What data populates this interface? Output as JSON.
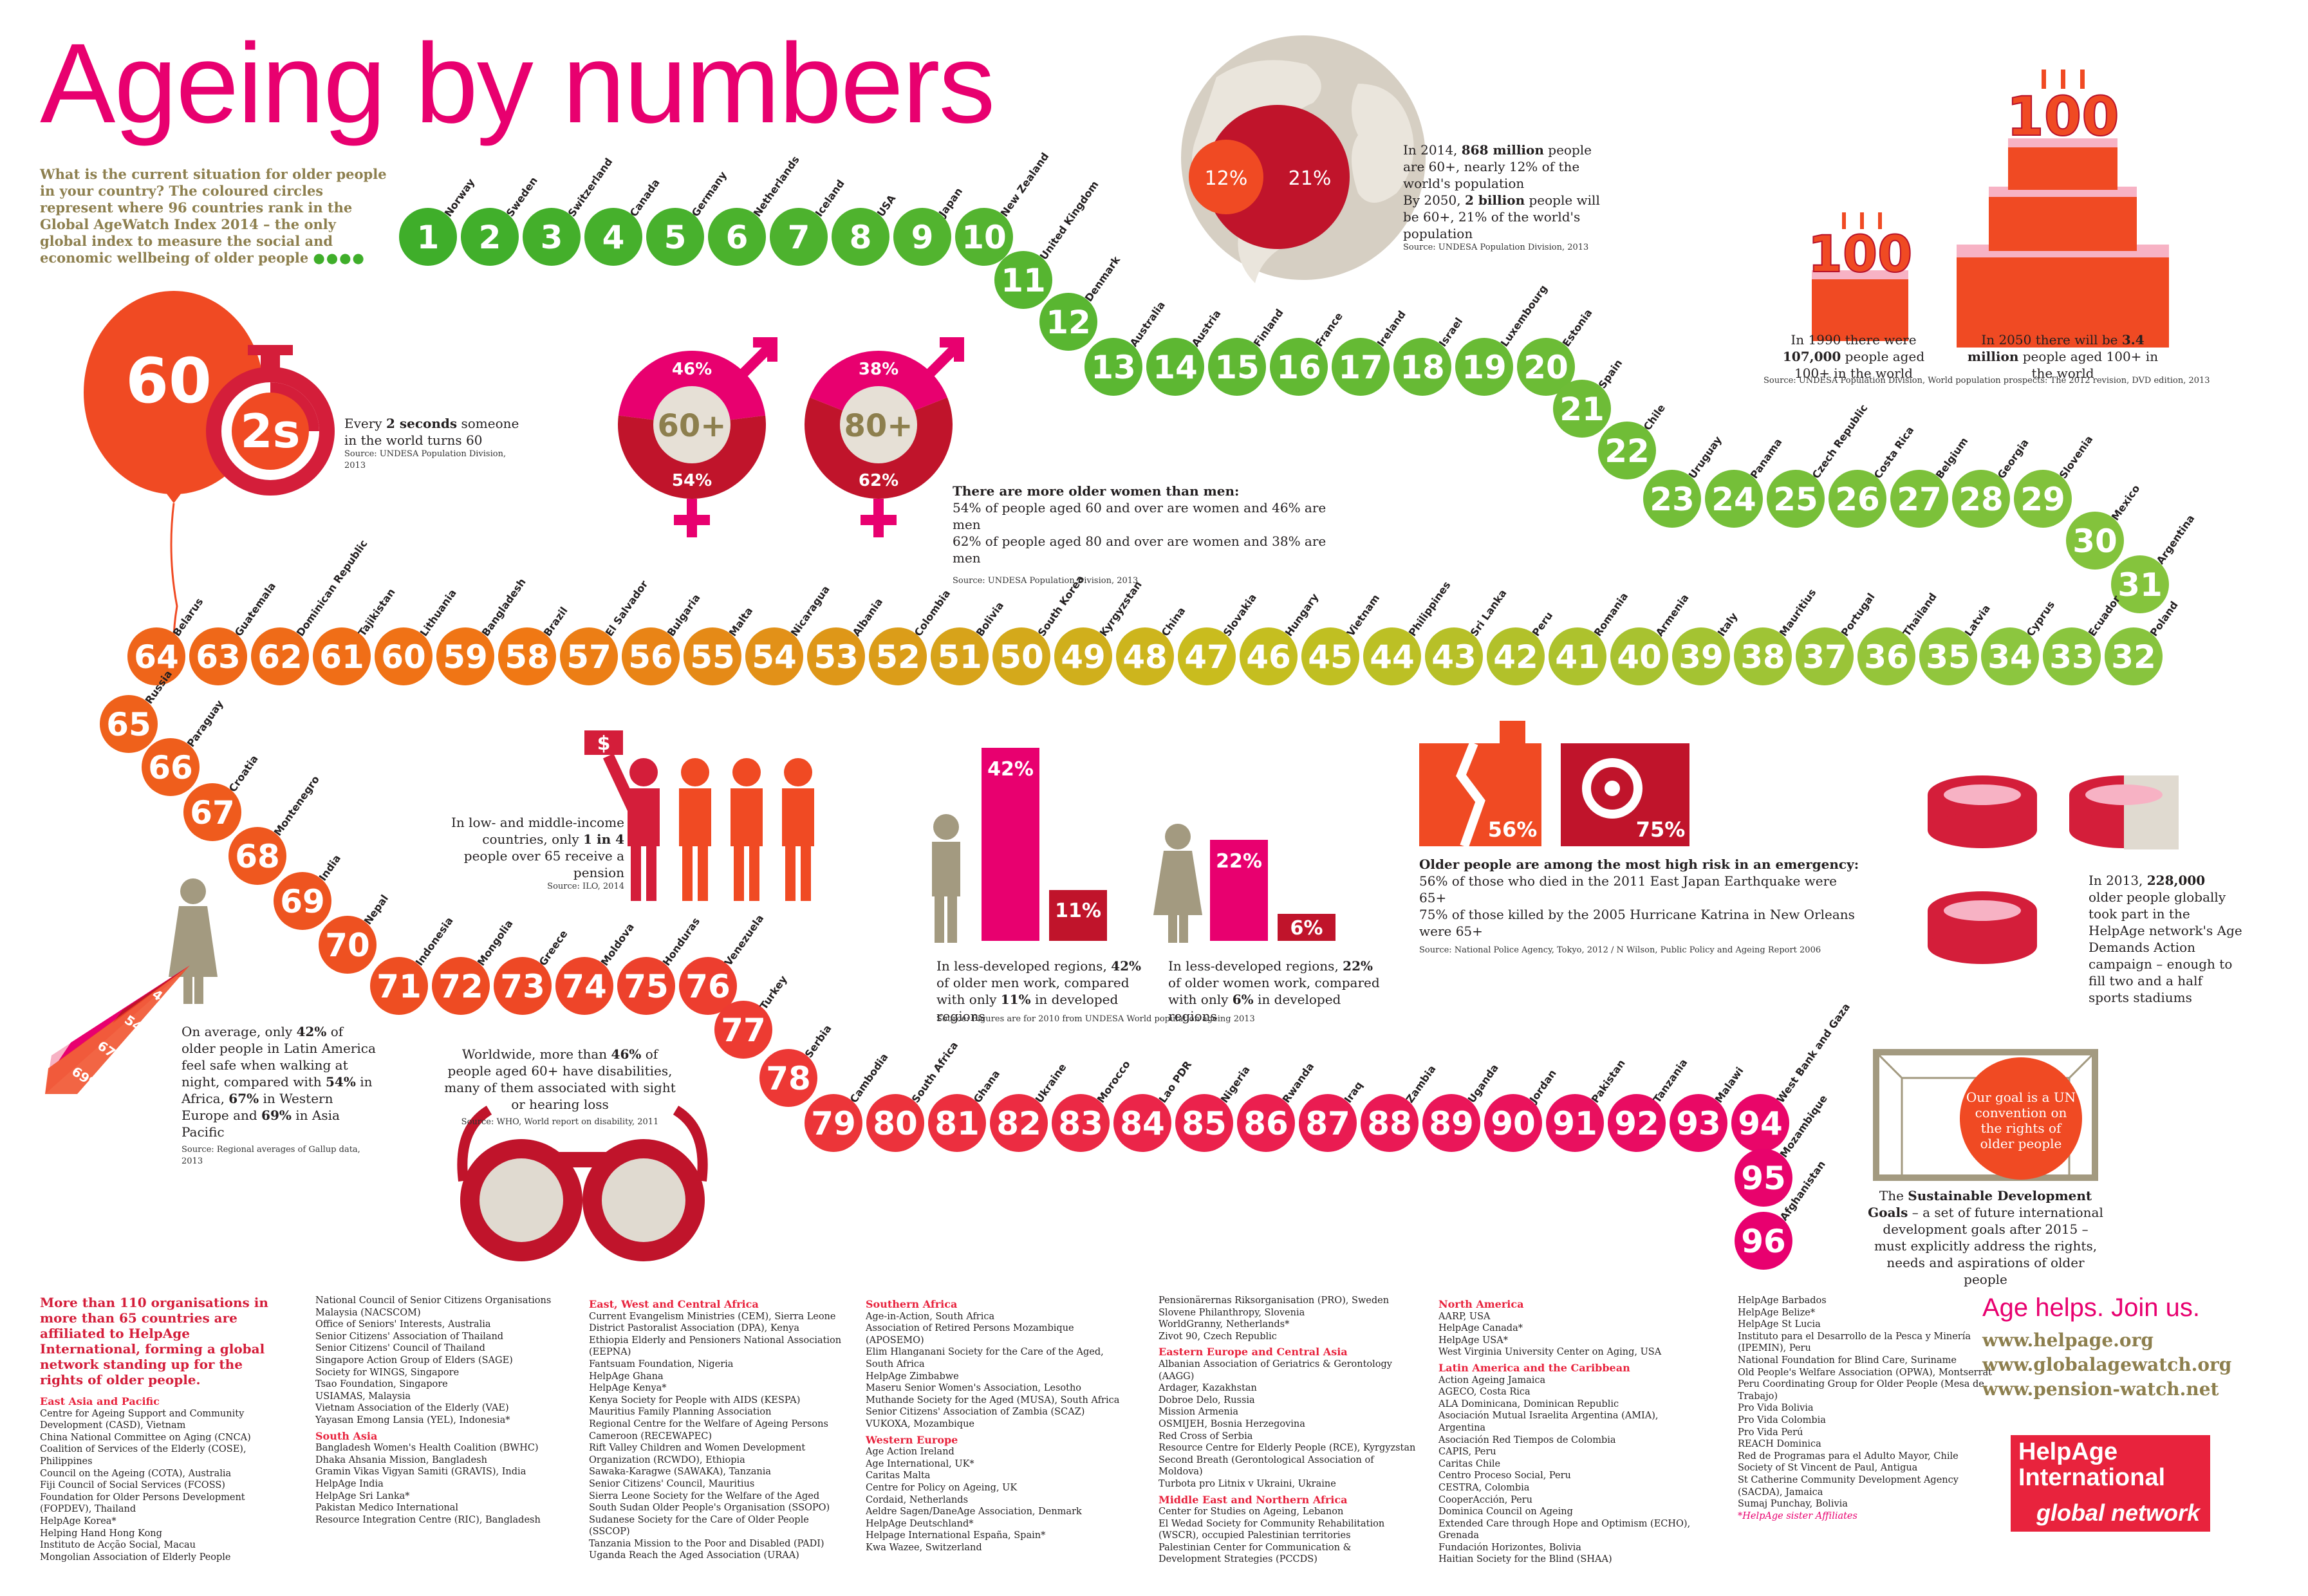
{
  "title": "Ageing by numbers",
  "intro": "What is the current situation for older people in your country? The coloured circles represent where 96 countries rank in the Global AgeWatch Index 2014 – the only global index to measure the social and economic wellbeing of older people",
  "intro_dots": "●●●●",
  "countries": [
    "Norway",
    "Sweden",
    "Switzerland",
    "Canada",
    "Germany",
    "Netherlands",
    "Iceland",
    "USA",
    "Japan",
    "New Zealand",
    "United Kingdom",
    "Denmark",
    "Australia",
    "Austria",
    "Finland",
    "France",
    "Ireland",
    "Israel",
    "Luxembourg",
    "Estonia",
    "Spain",
    "Chile",
    "Uruguay",
    "Panama",
    "Czech Republic",
    "Costa Rica",
    "Belgium",
    "Georgia",
    "Slovenia",
    "Mexico",
    "Argentina",
    "Poland",
    "Ecuador",
    "Cyprus",
    "Latvia",
    "Thailand",
    "Portugal",
    "Mauritius",
    "Italy",
    "Armenia",
    "Romania",
    "Peru",
    "Sri Lanka",
    "Philippines",
    "Vietnam",
    "Hungary",
    "Slovakia",
    "China",
    "Kyrgyzstan",
    "South Korea",
    "Bolivia",
    "Colombia",
    "Albania",
    "Nicaragua",
    "Malta",
    "Bulgaria",
    "El Salvador",
    "Brazil",
    "Bangladesh",
    "Lithuania",
    "Tajikistan",
    "Dominican Republic",
    "Guatemala",
    "Belarus",
    "Russia",
    "Paraguay",
    "Croatia",
    "Montenegro",
    "India",
    "Nepal",
    "Indonesia",
    "Mongolia",
    "Greece",
    "Moldova",
    "Honduras",
    "Venezuela",
    "Turkey",
    "Serbia",
    "Cambodia",
    "South Africa",
    "Ghana",
    "Ukraine",
    "Morocco",
    "Lao PDR",
    "Nigeria",
    "Rwanda",
    "Iraq",
    "Zambia",
    "Uganda",
    "Jordan",
    "Pakistan",
    "Tanzania",
    "Malawi",
    "West Bank and Gaza",
    "Mozambique",
    "Afghanistan"
  ],
  "colors": {
    "magenta": "#e8006f",
    "red": "#d41e3a",
    "orange": "#ee4a23",
    "green": "#3fae2a",
    "olive": "#8d7f4e",
    "darkred": "#b8112a",
    "pink": "#f06ca2",
    "lightgreen": "#8dc63f"
  },
  "population": {
    "pct_2014": "12%",
    "pct_2050": "21%",
    "text_2014_a": "In 2014, ",
    "text_2014_b": "868 million",
    "text_2014_c": " people are 60+, nearly 12% of the world's population",
    "text_2050_a": "By 2050, ",
    "text_2050_b": "2 billion",
    "text_2050_c": " people will be 60+, 21% of the world's population",
    "source": "Source: UNDESA Population Division, 2013"
  },
  "centenarians": {
    "small": "100",
    "big": "100",
    "text_1990_a": "In 1990 there were ",
    "text_1990_b": "107,000",
    "text_1990_c": " people aged 100+ in the world",
    "text_2050_a": "In 2050 there will be ",
    "text_2050_b": "3.4 million",
    "text_2050_c": " people aged 100+ in the world",
    "source": "Source: UNDESA Population Division, World population prospects: The 2012 revision, DVD edition, 2013"
  },
  "sixty": {
    "balloon": "60",
    "timer": "2s",
    "text_a": "Every ",
    "text_b": "2 seconds",
    "text_c": " someone in the world turns 60",
    "source": "Source: UNDESA Population Division, 2013"
  },
  "gender": {
    "g60": {
      "label": "60+",
      "men": "46%",
      "women": "54%",
      "men_pct": 46
    },
    "g80": {
      "label": "80+",
      "men": "38%",
      "women": "62%",
      "men_pct": 38
    },
    "title": "There are more older women than men:",
    "line1": "54% of people aged 60 and over are women and 46% are men",
    "line2": "62% of people aged 80 and over are women and 38% are men",
    "source": "Source: UNDESA Population Division, 2013"
  },
  "pension": {
    "sign": "$",
    "text_a": "In low- and middle-income countries, only ",
    "text_b": "1 in 4",
    "text_c": " people over 65 receive a pension",
    "source": "Source: ILO, 2014"
  },
  "work": {
    "men_less": "42%",
    "men_dev": "11%",
    "women_less": "22%",
    "women_dev": "6%",
    "men_text_a": "In less-developed regions, ",
    "men_text_b": "42%",
    "men_text_c": " of older men work, compared with only ",
    "men_text_d": "11%",
    "men_text_e": " in developed regions",
    "women_text_a": "In less-developed regions, ",
    "women_text_b": "22%",
    "women_text_c": " of older women work, compared with only ",
    "women_text_d": "6%",
    "women_text_e": " in developed regions",
    "source": "Source: Figures are for 2010 from UNDESA World population ageing 2013"
  },
  "emergency": {
    "quake": "56%",
    "katrina": "75%",
    "title": "Older people are among the most high risk in an emergency:",
    "line1": "56% of those who died in the 2011 East Japan Earthquake were 65+",
    "line2": "75% of those killed by the 2005 Hurricane Katrina in New Orleans were 65+",
    "source": "Source: National Police Agency, Tokyo, 2012 / N Wilson, Public Policy and Ageing Report 2006"
  },
  "stadium": {
    "text_a": "In 2013, ",
    "text_b": "228,000",
    "text_c": " older people globally took part in the HelpAge network's Age Demands Action campaign – enough to fill two and a half sports stadiums"
  },
  "safety": {
    "v1": "42%",
    "v2": "54%",
    "v3": "67%",
    "v4": "69%",
    "text_a": "On average, only ",
    "text_b": "42%",
    "text_c": " of older people in Latin America feel safe when walking at night, compared with ",
    "text_d": "54%",
    "text_e": " in Africa, ",
    "text_f": "67%",
    "text_g": " in Western Europe and ",
    "text_h": "69%",
    "text_i": " in Asia Pacific",
    "source": "Source: Regional averages of Gallup data, 2013"
  },
  "disability": {
    "text_a": "Worldwide, more than ",
    "text_b": "46%",
    "text_c": " of people aged 60+ have disabilities, many of them associated with sight or hearing loss",
    "source": "Source: WHO, World report on disability, 2011"
  },
  "sdg": {
    "ball": "Our goal is a UN convention on the rights of older people",
    "text_a": "The ",
    "text_b": "Sustainable Development Goals",
    "text_c": " – a set of future international development goals after 2015 – must explicitly address the rights, needs and aspirations of older people"
  },
  "orgs_lead": "More than 110 organisations in more than 65 countries are affiliated to HelpAge International, forming a global network standing up for the rights of older people.",
  "join": {
    "slogan": "Age helps. Join us.",
    "web1": "www.helpage.org",
    "web2": "www.globalagewatch.org",
    "web3": "www.pension-watch.net"
  },
  "logo": {
    "line1": "HelpAge",
    "line2": "International",
    "line3": "global network"
  },
  "orgs": [
    [
      {
        "h": "East Asia and Pacific"
      },
      "Centre for Ageing Support and Community Development (CASD), Vietnam",
      "China National Committee on Aging (CNCA)",
      "Coalition of Services of the Elderly (COSE), Philippines",
      "Council on the Ageing (COTA), Australia",
      "Fiji Council of Social Services (FCOSS)",
      "Foundation for Older Persons Development (FOPDEV), Thailand",
      "HelpAge Korea*",
      "Helping Hand Hong Kong",
      "Instituto de Acção Social, Macau",
      "Mongolian Association of Elderly People"
    ],
    [
      "National Council of Senior Citizens Organisations Malaysia (NACSCOM)",
      "Office of Seniors' Interests, Australia",
      "Senior Citizens' Association of Thailand",
      "Senior Citizens' Council of Thailand",
      "Singapore Action Group of Elders (SAGE)",
      "Society for WINGS, Singapore",
      "Tsao Foundation, Singapore",
      "USIAMAS, Malaysia",
      "Vietnam Association of the Elderly (VAE)",
      "Yayasan Emong Lansia (YEL), Indonesia*",
      {
        "h": "South Asia"
      },
      "Bangladesh Women's Health Coalition (BWHC)",
      "Dhaka Ahsania Mission, Bangladesh",
      "Gramin Vikas Vigyan Samiti (GRAVIS), India",
      "HelpAge India",
      "HelpAge Sri Lanka*",
      "Pakistan Medico International",
      "Resource Integration Centre (RIC), Bangladesh"
    ],
    [
      {
        "h": "East, West and Central Africa"
      },
      "Current Evangelism Ministries (CEM), Sierra Leone",
      "District Pastoralist Association (DPA), Kenya",
      "Ethiopia Elderly and Pensioners National Association (EEPNA)",
      "Fantsuam Foundation, Nigeria",
      "HelpAge Ghana",
      "HelpAge Kenya*",
      "Kenya Society for People with AIDS (KESPA)",
      "Mauritius Family Planning Association",
      "Regional Centre for the Welfare of Ageing Persons Cameroon (RECEWAPEC)",
      "Rift Valley Children and Women Development Organization (RCWDO), Ethiopia",
      "Sawaka-Karagwe (SAWAKA), Tanzania",
      "Senior Citizens' Council, Mauritius",
      "Sierra Leone Society for the Welfare of the Aged",
      "South Sudan Older People's Organisation (SSOPO)",
      "Sudanese Society for the Care of Older People (SSCOP)",
      "Tanzania Mission to the Poor and Disabled (PADI)",
      "Uganda Reach the Aged Association (URAA)"
    ],
    [
      {
        "h": "Southern Africa"
      },
      "Age-in-Action, South Africa",
      "Association of Retired Persons Mozambique (APOSEMO)",
      "Elim Hlanganani Society for the Care of the Aged, South Africa",
      "HelpAge Zimbabwe",
      "Maseru Senior Women's Association, Lesotho",
      "Muthande Society for the Aged (MUSA), South Africa",
      "Senior Citizens' Association of Zambia (SCAZ)",
      "VUKOXA, Mozambique",
      {
        "h": "Western Europe"
      },
      "Age Action Ireland",
      "Age International, UK*",
      "Caritas Malta",
      "Centre for Policy on Ageing, UK",
      "Cordaid, Netherlands",
      "Aeldre Sagen/DaneAge Association, Denmark",
      "HelpAge Deutschland*",
      "Helpage International España, Spain*",
      "Kwa Wazee, Switzerland"
    ],
    [
      "Pensionärernas Riksorganisation (PRO), Sweden",
      "Slovene Philanthropy, Slovenia",
      "WorldGranny, Netherlands*",
      "Zivot 90, Czech Republic",
      {
        "h": "Eastern Europe and Central Asia"
      },
      "Albanian Association of Geriatrics & Gerontology (AAGG)",
      "Ardager, Kazakhstan",
      "Dobroe Delo, Russia",
      "Mission Armenia",
      "OSMIJEH, Bosnia Herzegovina",
      "Red Cross of Serbia",
      "Resource Centre for Elderly People (RCE), Kyrgyzstan",
      "Second Breath (Gerontological Association of Moldova)",
      "Turbota pro Litnix v Ukraini, Ukraine",
      {
        "h": "Middle East and Northern Africa"
      },
      "Center for Studies on Ageing, Lebanon",
      "El Wedad Society for Community Rehabilitation (WSCR), occupied Palestinian territories",
      "Palestinian Center for Communication & Development Strategies (PCCDS)"
    ],
    [
      {
        "h": "North America"
      },
      "AARP, USA",
      "HelpAge Canada*",
      "HelpAge USA*",
      "West Virginia University Center on Aging, USA",
      {
        "h": "Latin America and the Caribbean"
      },
      "Action Ageing Jamaica",
      "AGECO, Costa Rica",
      "ALA Dominicana, Dominican Republic",
      "Asociación Mutual Israelita Argentina (AMIA), Argentina",
      "Asociación Red Tiempos de Colombia",
      "CAPIS, Peru",
      "Caritas Chile",
      "Centro Proceso Social, Peru",
      "CESTRA, Colombia",
      "CooperAcción, Peru",
      "Dominica Council on Ageing",
      "Extended Care through Hope and Optimism (ECHO), Grenada",
      "Fundación Horizontes, Bolivia",
      "Haitian Society for the Blind (SHAA)"
    ],
    [
      "HelpAge Barbados",
      "HelpAge Belize*",
      "HelpAge St Lucia",
      "Instituto para el Desarrollo de la Pesca y Minería (IPEMIN), Peru",
      "National Foundation for Blind Care, Suriname",
      "Old People's Welfare Association (OPWA), Montserrat",
      "Peru Coordinating Group for Older People (Mesa de Trabajo)",
      "Pro Vida Bolivia",
      "Pro Vida Colombia",
      "Pro Vida Perú",
      "REACH Dominica",
      "Red de Programas para el Adulto Mayor, Chile",
      "Society of St Vincent de Paul, Antigua",
      "St Catherine Community Development Agency (SACDA), Jamaica",
      "Sumaj Punchay, Bolivia",
      {
        "note": "*HelpAge sister Affiliates"
      }
    ]
  ]
}
